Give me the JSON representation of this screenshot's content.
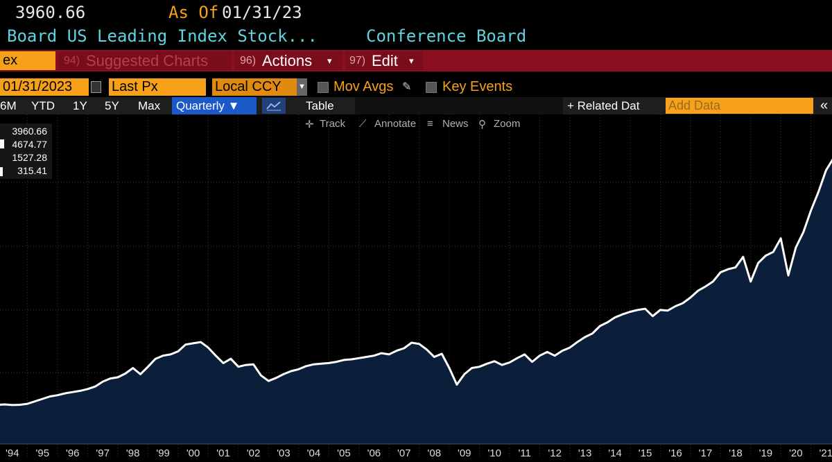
{
  "header": {
    "price": "3960.66",
    "as_of_label": "As Of",
    "as_of_date": "01/31/23",
    "name": "Board US Leading Index Stock...",
    "source": "Conference Board"
  },
  "menu": {
    "field": "ex",
    "suggested_num": "94)",
    "suggested": "Suggested Charts",
    "actions_num": "96)",
    "actions": "Actions",
    "edit_num": "97)",
    "edit": "Edit"
  },
  "controls": {
    "date": "01/31/2023",
    "field": "Last Px",
    "currency": "Local CCY",
    "mov_avgs": "Mov Avgs",
    "key_events": "Key Events"
  },
  "toolbar": {
    "ranges": [
      "6M",
      "YTD",
      "1Y",
      "5Y",
      "Max"
    ],
    "frequency": "Quarterly ▼",
    "table": "Table",
    "related": "+ Related Dat",
    "add_data": "Add Data",
    "collapse": "«"
  },
  "tools": [
    "Track",
    "Annotate",
    "News",
    "Zoom"
  ],
  "chart_data": {
    "type": "area",
    "legend_values": [
      "3960.66",
      "4674.77",
      "1527.28",
      "315.41"
    ],
    "x": [
      1994.0,
      1994.25,
      1994.5,
      1994.75,
      1995.0,
      1995.25,
      1995.5,
      1995.75,
      1996.0,
      1996.25,
      1996.5,
      1996.75,
      1997.0,
      1997.25,
      1997.5,
      1997.75,
      1998.0,
      1998.25,
      1998.5,
      1998.75,
      1999.0,
      1999.25,
      1999.5,
      1999.75,
      2000.0,
      2000.25,
      2000.5,
      2000.75,
      2001.0,
      2001.25,
      2001.5,
      2001.75,
      2002.0,
      2002.25,
      2002.5,
      2002.75,
      2003.0,
      2003.25,
      2003.5,
      2003.75,
      2004.0,
      2004.25,
      2004.5,
      2004.75,
      2005.0,
      2005.25,
      2005.5,
      2005.75,
      2006.0,
      2006.25,
      2006.5,
      2006.75,
      2007.0,
      2007.25,
      2007.5,
      2007.75,
      2008.0,
      2008.25,
      2008.5,
      2008.75,
      2009.0,
      2009.25,
      2009.5,
      2009.75,
      2010.0,
      2010.25,
      2010.5,
      2010.75,
      2011.0,
      2011.25,
      2011.5,
      2011.75,
      2012.0,
      2012.25,
      2012.5,
      2012.75,
      2013.0,
      2013.25,
      2013.5,
      2013.75,
      2014.0,
      2014.25,
      2014.5,
      2014.75,
      2015.0,
      2015.25,
      2015.5,
      2015.75,
      2016.0,
      2016.25,
      2016.5,
      2016.75,
      2017.0,
      2017.25,
      2017.5,
      2017.75,
      2018.0,
      2018.25,
      2018.5,
      2018.75,
      2019.0,
      2019.25,
      2019.5,
      2019.75,
      2020.0,
      2020.25,
      2020.5,
      2020.75,
      2021.0,
      2021.25,
      2021.5,
      2021.75
    ],
    "values": [
      505,
      510,
      500,
      505,
      520,
      560,
      600,
      640,
      660,
      690,
      710,
      730,
      760,
      800,
      880,
      930,
      950,
      1010,
      1100,
      1000,
      1120,
      1250,
      1300,
      1320,
      1370,
      1480,
      1500,
      1520,
      1430,
      1300,
      1180,
      1250,
      1120,
      1150,
      1160,
      980,
      890,
      940,
      1000,
      1050,
      1080,
      1130,
      1160,
      1170,
      1180,
      1200,
      1230,
      1240,
      1260,
      1280,
      1300,
      1340,
      1320,
      1380,
      1420,
      1510,
      1490,
      1400,
      1280,
      1330,
      1100,
      830,
      1000,
      1100,
      1120,
      1170,
      1210,
      1150,
      1190,
      1260,
      1320,
      1200,
      1300,
      1360,
      1300,
      1380,
      1430,
      1520,
      1600,
      1660,
      1780,
      1840,
      1920,
      1970,
      2010,
      2040,
      2060,
      1940,
      2040,
      2030,
      2100,
      2150,
      2240,
      2350,
      2420,
      2500,
      2650,
      2700,
      2730,
      2900,
      2500,
      2800,
      2920,
      2980,
      3200,
      2600,
      3050,
      3300,
      3650,
      3950,
      4300,
      4500
    ],
    "color": "#ffffff",
    "fill": "#0c1f3a",
    "xlim": [
      1994.09,
      2021.7
    ],
    "ylim": [
      -130,
      5150
    ],
    "xticks": [
      {
        "value": 1994,
        "label": "'94"
      },
      {
        "value": 1995,
        "label": "'95"
      },
      {
        "value": 1996,
        "label": "'96"
      },
      {
        "value": 1997,
        "label": "'97"
      },
      {
        "value": 1998,
        "label": "'98"
      },
      {
        "value": 1999,
        "label": "'99"
      },
      {
        "value": 2000,
        "label": "'00"
      },
      {
        "value": 2001,
        "label": "'01"
      },
      {
        "value": 2002,
        "label": "'02"
      },
      {
        "value": 2003,
        "label": "'03"
      },
      {
        "value": 2004,
        "label": "'04"
      },
      {
        "value": 2005,
        "label": "'05"
      },
      {
        "value": 2006,
        "label": "'06"
      },
      {
        "value": 2007,
        "label": "'07"
      },
      {
        "value": 2008,
        "label": "'08"
      },
      {
        "value": 2009,
        "label": "'09"
      },
      {
        "value": 2010,
        "label": "'10"
      },
      {
        "value": 2011,
        "label": "'11"
      },
      {
        "value": 2012,
        "label": "'12"
      },
      {
        "value": 2013,
        "label": "'13"
      },
      {
        "value": 2014,
        "label": "'14"
      },
      {
        "value": 2015,
        "label": "'15"
      },
      {
        "value": 2016,
        "label": "'16"
      },
      {
        "value": 2017,
        "label": "'17"
      },
      {
        "value": 2018,
        "label": "'18"
      },
      {
        "value": 2019,
        "label": "'19"
      },
      {
        "value": 2020,
        "label": "'20"
      },
      {
        "value": 2021,
        "label": "'21"
      }
    ],
    "grid": true
  }
}
